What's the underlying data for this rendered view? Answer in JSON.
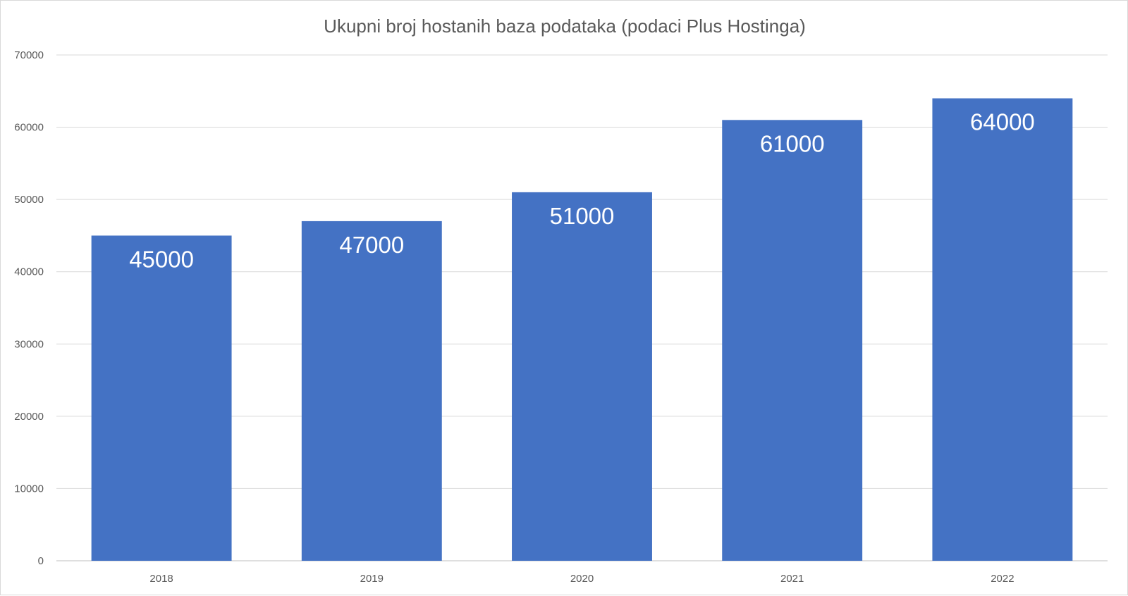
{
  "chart_data": {
    "type": "bar",
    "title": "Ukupni broj hostanih baza podataka (podaci Plus Hostinga)",
    "categories": [
      "2018",
      "2019",
      "2020",
      "2021",
      "2022"
    ],
    "values": [
      45000,
      47000,
      51000,
      61000,
      64000
    ],
    "data_labels": [
      "45000",
      "47000",
      "51000",
      "61000",
      "64000"
    ],
    "y_ticks": [
      "0",
      "10000",
      "20000",
      "30000",
      "40000",
      "50000",
      "60000",
      "70000"
    ],
    "ylim": [
      0,
      70000
    ],
    "xlabel": "",
    "ylabel": "",
    "grid": true,
    "legend": "none",
    "colors": {
      "bar": "#4472c4",
      "data_label": "#ffffff",
      "text": "#595959",
      "gridline": "#d9d9d9"
    }
  }
}
